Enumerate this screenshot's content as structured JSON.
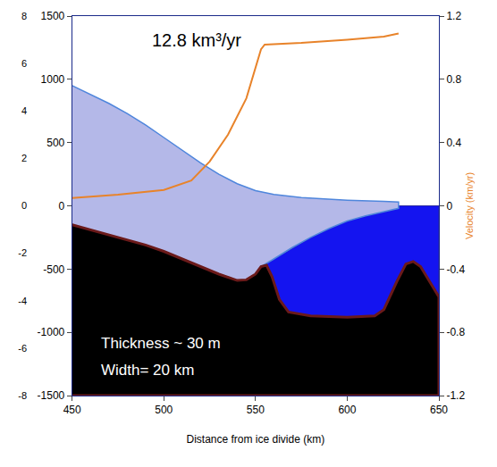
{
  "chart_data": {
    "type": "area",
    "annotations": [
      "12.8 km³/yr",
      "Thickness ~ 30 m",
      "Width= 20 km"
    ],
    "x_label": "Distance from ice divide (km)",
    "y2_label": "Velocity (km/yr)",
    "xlim": [
      450,
      650
    ],
    "xticks": [
      450,
      500,
      550,
      600,
      650
    ],
    "ylim": [
      -1500,
      1500
    ],
    "yticks": [
      -1500,
      -1000,
      -500,
      0,
      500,
      1000,
      1500
    ],
    "y2lim": [
      -1.2,
      1.2
    ],
    "y2ticks": [
      -1.2,
      -0.8,
      -0.4,
      0,
      0.4,
      0.8,
      1.2
    ],
    "y3lim": [
      -8,
      8
    ],
    "y3ticks": [
      -8,
      -6,
      -4,
      -2,
      0,
      2,
      4,
      6,
      8
    ],
    "grid": false,
    "series": [
      {
        "color": "#b4b8e8",
        "x": [
          450,
          460,
          470,
          480,
          490,
          500,
          510,
          520,
          530,
          540,
          550,
          560,
          575,
          600,
          620,
          628
        ],
        "values": [
          950,
          880,
          810,
          730,
          640,
          540,
          440,
          340,
          250,
          175,
          120,
          90,
          65,
          45,
          35,
          30
        ]
      },
      {
        "color": "#1414f0",
        "x": [
          553,
          560,
          570,
          580,
          590,
          600,
          610,
          620,
          628
        ],
        "values": [
          -480,
          -420,
          -330,
          -250,
          -180,
          -120,
          -80,
          -45,
          -20
        ]
      },
      {
        "color": "#000000",
        "x": [
          450,
          460,
          470,
          480,
          490,
          500,
          510,
          520,
          530,
          540,
          545,
          550,
          553,
          556,
          559,
          563,
          568,
          580,
          600,
          615,
          620,
          627,
          632,
          636,
          640,
          645,
          650
        ],
        "values": [
          -150,
          -190,
          -230,
          -270,
          -310,
          -360,
          -420,
          -480,
          -540,
          -590,
          -585,
          -540,
          -480,
          -470,
          -560,
          -740,
          -840,
          -870,
          -880,
          -870,
          -820,
          -600,
          -460,
          -440,
          -480,
          -600,
          -720
        ]
      },
      {
        "color": "#e8832a",
        "axis": "y2",
        "x": [
          450,
          475,
          500,
          515,
          525,
          535,
          545,
          550,
          553,
          555,
          575,
          600,
          620,
          628
        ],
        "values": [
          0.05,
          0.07,
          0.1,
          0.16,
          0.28,
          0.45,
          0.68,
          0.88,
          0.99,
          1.02,
          1.03,
          1.05,
          1.07,
          1.09
        ]
      },
      {
        "color": "#2a2aa0",
        "x": [
          628,
          650
        ],
        "values": [
          0,
          0
        ]
      }
    ]
  }
}
